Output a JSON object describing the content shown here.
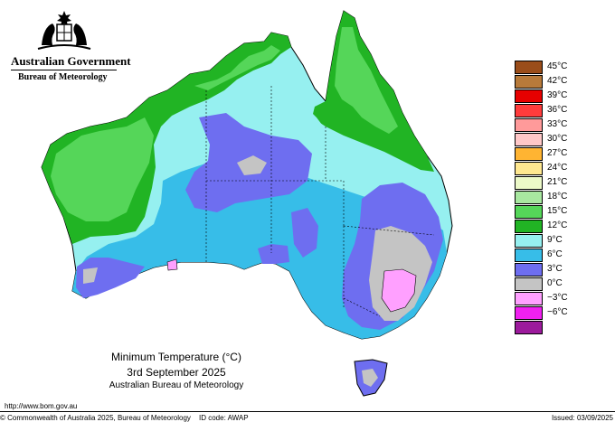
{
  "header": {
    "government": "Australian Government",
    "bureau": "Bureau of Meteorology",
    "crest_icon": "coat-of-arms-icon"
  },
  "legend": {
    "items": [
      {
        "label": "45°C",
        "color": "#9a4d1a"
      },
      {
        "label": "42°C",
        "color": "#b87a3a"
      },
      {
        "label": "39°C",
        "color": "#e60000"
      },
      {
        "label": "36°C",
        "color": "#ff3c3c"
      },
      {
        "label": "33°C",
        "color": "#ff9a9a"
      },
      {
        "label": "30°C",
        "color": "#ffc8c8"
      },
      {
        "label": "27°C",
        "color": "#ffb432"
      },
      {
        "label": "24°C",
        "color": "#ffe890"
      },
      {
        "label": "21°C",
        "color": "#ecf9c8"
      },
      {
        "label": "18°C",
        "color": "#a8e8a0"
      },
      {
        "label": "15°C",
        "color": "#55d659"
      },
      {
        "label": "12°C",
        "color": "#21b424"
      },
      {
        "label": "9°C",
        "color": "#96f0f0"
      },
      {
        "label": "6°C",
        "color": "#37bde8"
      },
      {
        "label": "3°C",
        "color": "#6e6ef0"
      },
      {
        "label": "0°C",
        "color": "#c4c4c4"
      },
      {
        "label": "−3°C",
        "color": "#ffa0ff"
      },
      {
        "label": "−6°C",
        "color": "#f020f0"
      },
      {
        "label": "",
        "color": "#9c1a9c"
      }
    ]
  },
  "caption": {
    "title": "Minimum Temperature (°C)",
    "date": "3rd September 2025",
    "org": "Australian Bureau of Meteorology"
  },
  "footer": {
    "url": "http://www.bom.gov.au",
    "copyright": "© Commonwealth of Australia 2025, Bureau of Meteorology",
    "id_code": "ID code: AWAP",
    "issued": "Issued: 03/09/2025"
  }
}
